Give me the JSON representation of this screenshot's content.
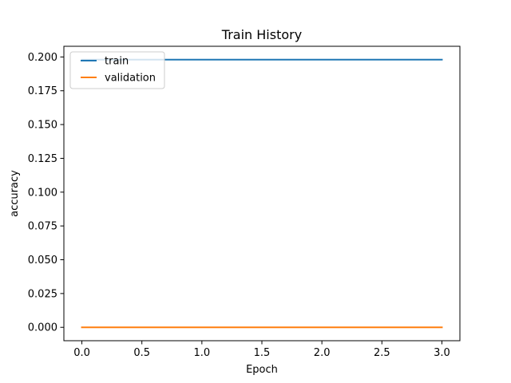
{
  "chart_data": {
    "type": "line",
    "title": "Train History",
    "xlabel": "Epoch",
    "ylabel": "accuracy",
    "x": [
      0,
      1,
      2,
      3
    ],
    "series": [
      {
        "name": "train",
        "color": "#1f77b4",
        "values": [
          0.198,
          0.198,
          0.198,
          0.198
        ]
      },
      {
        "name": "validation",
        "color": "#ff7f0e",
        "values": [
          0.0,
          0.0,
          0.0,
          0.0
        ]
      }
    ],
    "xlim": [
      -0.15,
      3.15
    ],
    "ylim": [
      -0.0099,
      0.2079
    ],
    "x_ticks": [
      0.0,
      0.5,
      1.0,
      1.5,
      2.0,
      2.5,
      3.0
    ],
    "x_tick_labels": [
      "0.0",
      "0.5",
      "1.0",
      "1.5",
      "2.0",
      "2.5",
      "3.0"
    ],
    "y_ticks": [
      0.0,
      0.025,
      0.05,
      0.075,
      0.1,
      0.125,
      0.15,
      0.175,
      0.2
    ],
    "y_tick_labels": [
      "0.000",
      "0.025",
      "0.050",
      "0.075",
      "0.100",
      "0.125",
      "0.150",
      "0.175",
      "0.200"
    ],
    "grid": false,
    "legend_position": "upper left"
  }
}
